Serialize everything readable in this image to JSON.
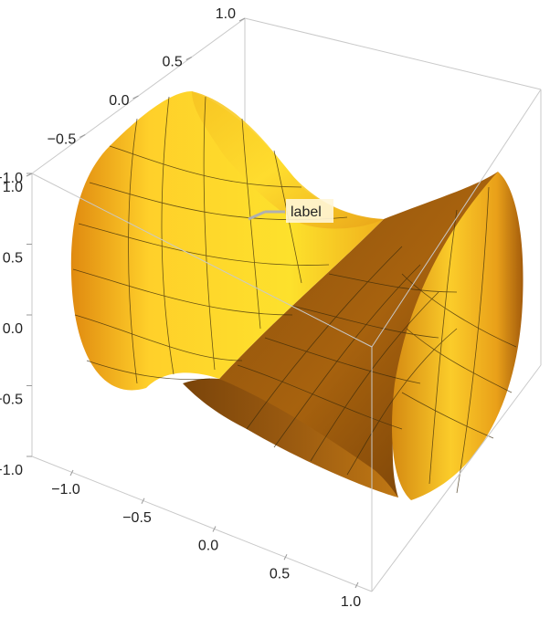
{
  "chart_data": {
    "type": "surface3d",
    "title": "",
    "surface": {
      "kind": "hyperboloid-saddle",
      "color": "#f2b01e",
      "mesh_lines": 10
    },
    "axes": {
      "x": {
        "range": [
          -1.0,
          1.0
        ],
        "ticks": [
          "-1.0",
          "-0.5",
          "0.0",
          "0.5",
          "1.0"
        ]
      },
      "y": {
        "range": [
          -1.0,
          1.0
        ],
        "ticks": [
          "-1.0",
          "-0.5",
          "0.0",
          "0.5",
          "1.0"
        ]
      },
      "z": {
        "range": [
          -1.0,
          1.0
        ],
        "ticks": [
          "-1.0",
          "-0.5",
          "0.0",
          "0.5",
          "1.0"
        ]
      }
    },
    "box": {
      "visible": true,
      "color": "#bdbdbd"
    },
    "callout": {
      "text": "label"
    }
  }
}
